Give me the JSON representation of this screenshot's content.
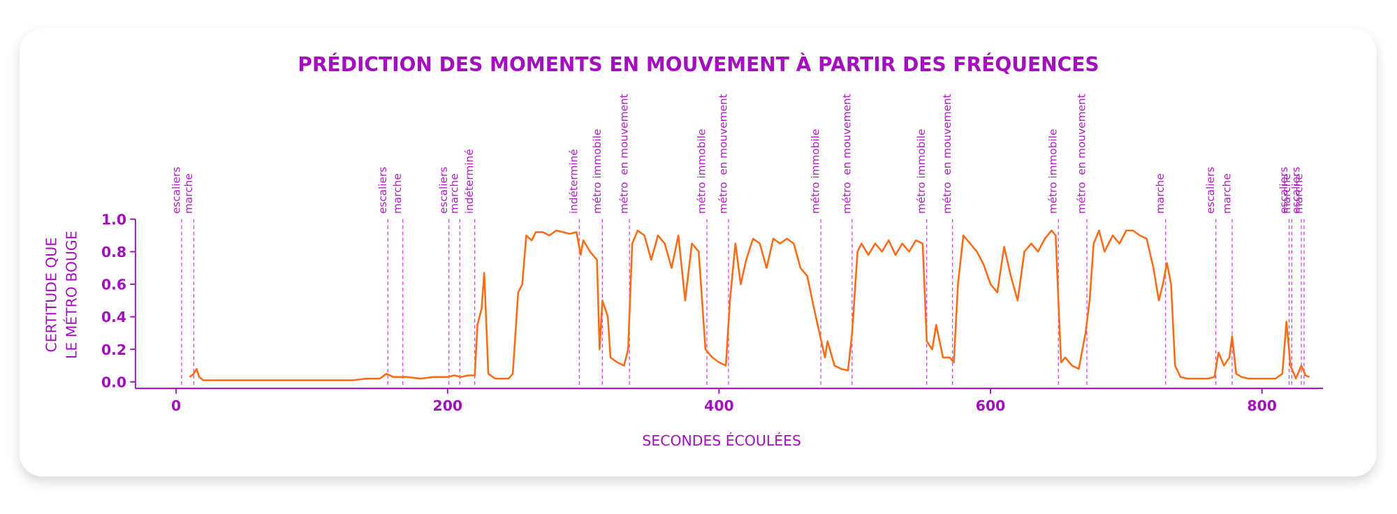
{
  "chart_data": {
    "type": "line",
    "title": "PRÉDICTION DES MOMENTS EN MOUVEMENT À PARTIR DES FRÉQUENCES",
    "xlabel": "SECONDES ÉCOULÉES",
    "ylabel": [
      "CERTITUDE QUE",
      "LE MÉTRO BOUGE"
    ],
    "xlim": [
      -30,
      845
    ],
    "ylim": [
      -0.04,
      1.0
    ],
    "xticks": [
      0,
      200,
      400,
      600,
      800
    ],
    "yticks": [
      {
        "value": 0,
        "label": "0.0"
      },
      0.2,
      0.4,
      0.6,
      0.8,
      {
        "value": 1,
        "label": "1.0"
      }
    ],
    "x": [
      10,
      13,
      15,
      17,
      20,
      30,
      40,
      50,
      60,
      70,
      80,
      90,
      100,
      110,
      120,
      130,
      140,
      150,
      155,
      160,
      170,
      180,
      190,
      200,
      205,
      210,
      215,
      220,
      222,
      225,
      227,
      230,
      235,
      240,
      245,
      248,
      252,
      255,
      258,
      262,
      265,
      270,
      275,
      280,
      285,
      290,
      295,
      298,
      300,
      305,
      310,
      312,
      314,
      318,
      320,
      325,
      330,
      333,
      336,
      340,
      345,
      350,
      355,
      360,
      365,
      370,
      375,
      380,
      385,
      390,
      395,
      400,
      405,
      408,
      412,
      416,
      420,
      425,
      430,
      435,
      440,
      445,
      450,
      455,
      460,
      465,
      470,
      474,
      478,
      480,
      485,
      490,
      495,
      498,
      502,
      505,
      510,
      515,
      520,
      525,
      530,
      535,
      540,
      545,
      550,
      553,
      557,
      560,
      565,
      570,
      573,
      576,
      580,
      585,
      590,
      595,
      600,
      605,
      610,
      615,
      620,
      625,
      630,
      635,
      640,
      645,
      648,
      650,
      652,
      655,
      660,
      665,
      670,
      673,
      676,
      680,
      684,
      690,
      695,
      700,
      705,
      710,
      715,
      720,
      724,
      727,
      730,
      733,
      736,
      740,
      745,
      750,
      755,
      760,
      765,
      768,
      772,
      776,
      778,
      781,
      785,
      790,
      800,
      810,
      815,
      818,
      821,
      825,
      829,
      832,
      835
    ],
    "series": [
      {
        "name": "certitude",
        "color": "#ff6a13",
        "values": [
          0.03,
          0.05,
          0.08,
          0.03,
          0.01,
          0.01,
          0.01,
          0.01,
          0.01,
          0.01,
          0.01,
          0.01,
          0.01,
          0.01,
          0.01,
          0.01,
          0.02,
          0.02,
          0.05,
          0.03,
          0.03,
          0.02,
          0.03,
          0.03,
          0.04,
          0.03,
          0.04,
          0.04,
          0.35,
          0.45,
          0.67,
          0.05,
          0.02,
          0.02,
          0.02,
          0.05,
          0.55,
          0.6,
          0.9,
          0.87,
          0.92,
          0.92,
          0.9,
          0.93,
          0.92,
          0.91,
          0.92,
          0.78,
          0.87,
          0.8,
          0.75,
          0.2,
          0.5,
          0.4,
          0.15,
          0.12,
          0.1,
          0.2,
          0.85,
          0.93,
          0.9,
          0.75,
          0.9,
          0.85,
          0.7,
          0.9,
          0.5,
          0.85,
          0.8,
          0.2,
          0.15,
          0.12,
          0.1,
          0.5,
          0.85,
          0.6,
          0.75,
          0.88,
          0.85,
          0.7,
          0.88,
          0.85,
          0.88,
          0.85,
          0.7,
          0.65,
          0.45,
          0.3,
          0.15,
          0.25,
          0.1,
          0.08,
          0.07,
          0.3,
          0.8,
          0.85,
          0.78,
          0.85,
          0.8,
          0.87,
          0.78,
          0.85,
          0.8,
          0.87,
          0.85,
          0.25,
          0.2,
          0.35,
          0.15,
          0.15,
          0.12,
          0.6,
          0.9,
          0.85,
          0.8,
          0.72,
          0.6,
          0.55,
          0.83,
          0.65,
          0.5,
          0.8,
          0.85,
          0.8,
          0.88,
          0.93,
          0.9,
          0.5,
          0.12,
          0.15,
          0.1,
          0.08,
          0.3,
          0.5,
          0.85,
          0.93,
          0.8,
          0.9,
          0.85,
          0.93,
          0.93,
          0.9,
          0.88,
          0.7,
          0.5,
          0.6,
          0.73,
          0.6,
          0.1,
          0.03,
          0.02,
          0.02,
          0.02,
          0.02,
          0.03,
          0.18,
          0.1,
          0.15,
          0.28,
          0.05,
          0.03,
          0.02,
          0.02,
          0.02,
          0.05,
          0.37,
          0.1,
          0.02,
          0.1,
          0.04,
          0.03
        ]
      }
    ],
    "annotations": [
      {
        "x": 4,
        "label": "escaliers"
      },
      {
        "x": 13,
        "label": "marche"
      },
      {
        "x": 156,
        "label": "escaliers"
      },
      {
        "x": 167,
        "label": "marche"
      },
      {
        "x": 201,
        "label": "escaliers"
      },
      {
        "x": 209,
        "label": "marche"
      },
      {
        "x": 220,
        "label": "indéterminé"
      },
      {
        "x": 297,
        "label": "indéterminé"
      },
      {
        "x": 314,
        "label": "métro immobile"
      },
      {
        "x": 334,
        "label": "métro  en mouvement"
      },
      {
        "x": 391,
        "label": "métro immobile"
      },
      {
        "x": 407,
        "label": "métro  en mouvement"
      },
      {
        "x": 475,
        "label": "métro immobile"
      },
      {
        "x": 498,
        "label": "métro  en mouvement"
      },
      {
        "x": 553,
        "label": "métro immobile"
      },
      {
        "x": 572,
        "label": "métro  en mouvement"
      },
      {
        "x": 650,
        "label": "métro immobile"
      },
      {
        "x": 671,
        "label": "métro  en mouvement"
      },
      {
        "x": 729,
        "label": "marche"
      },
      {
        "x": 766,
        "label": "escaliers"
      },
      {
        "x": 778,
        "label": "marche"
      },
      {
        "x": 820,
        "label": "escaliers"
      },
      {
        "x": 822,
        "label": "marche"
      },
      {
        "x": 829,
        "label": "escaliers"
      },
      {
        "x": 831,
        "label": "marche"
      }
    ]
  }
}
